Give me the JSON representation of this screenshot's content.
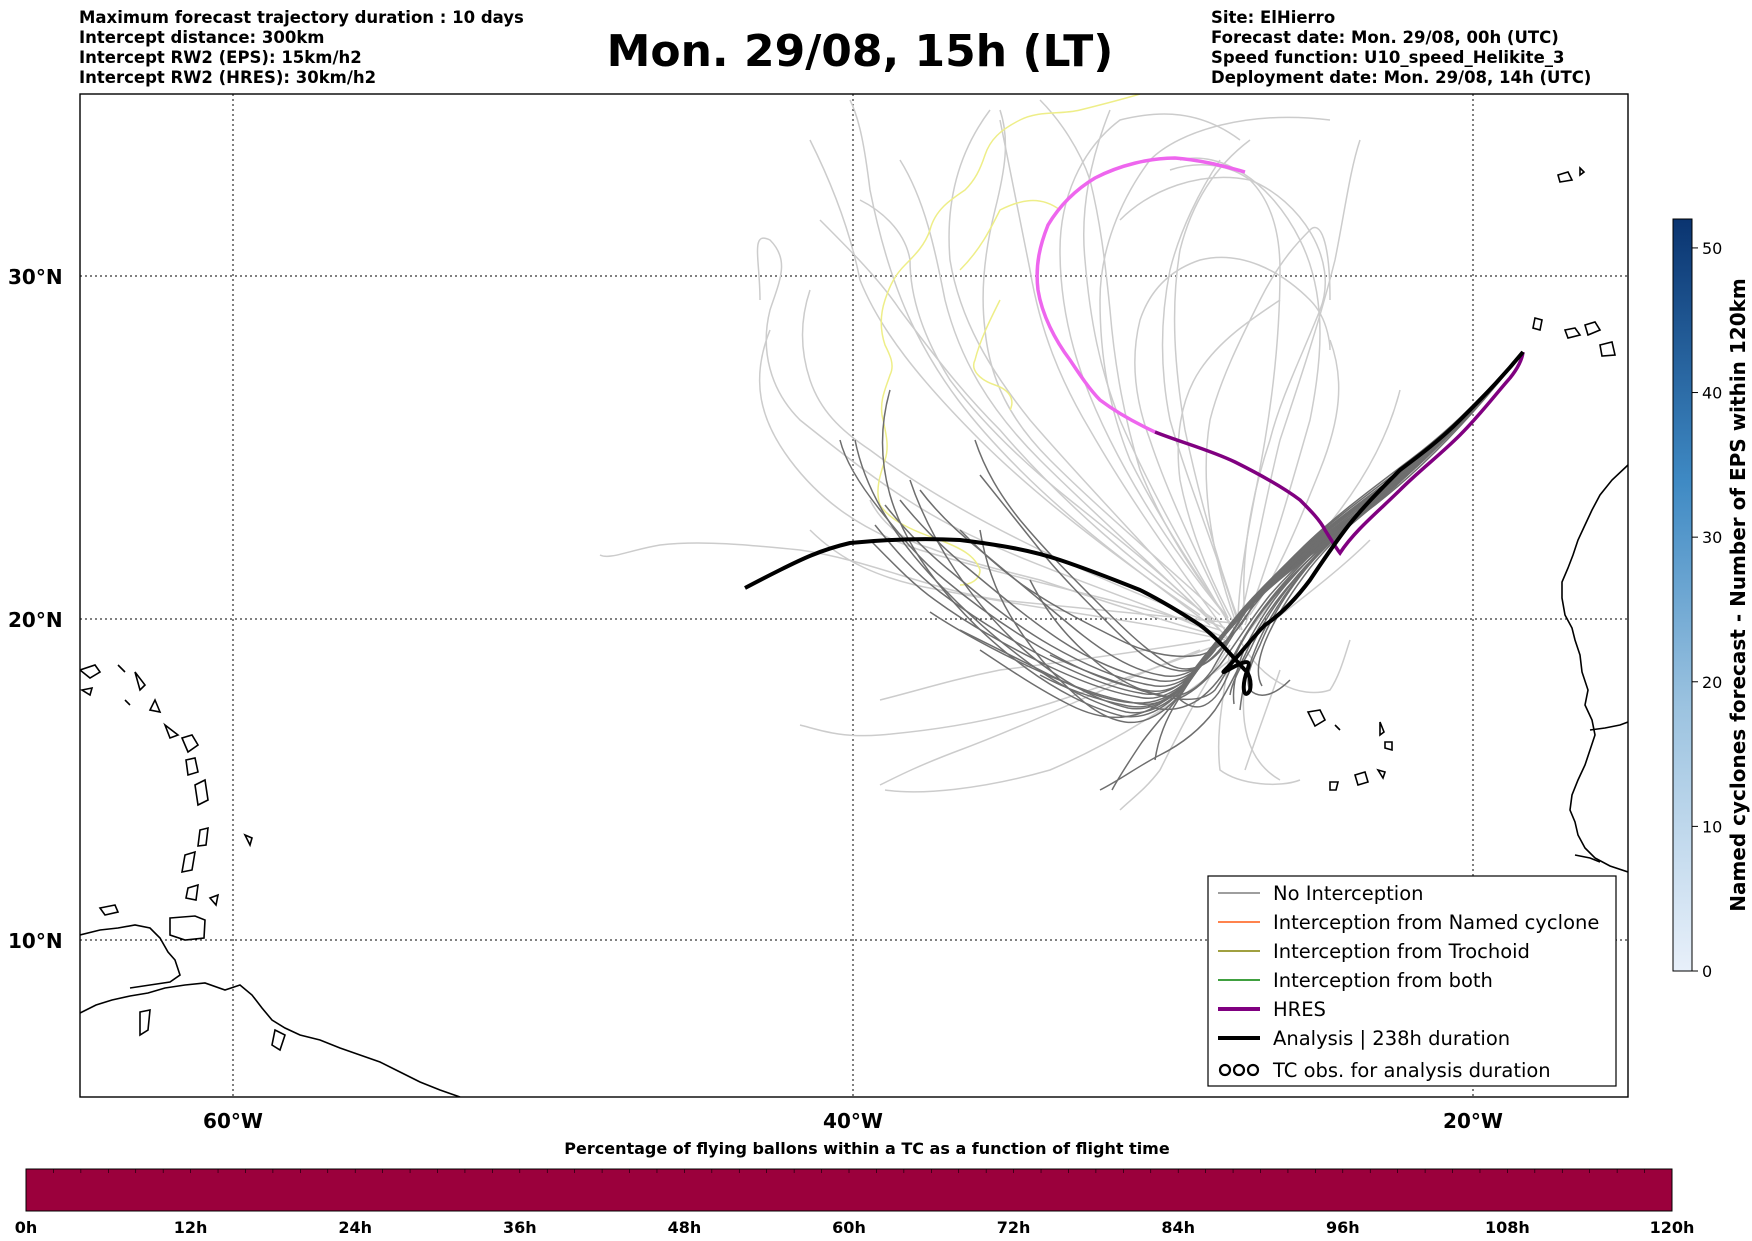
{
  "header": {
    "left_lines": [
      "Maximum forecast trajectory duration : 10 days",
      "Intercept distance: 300km",
      "Intercept RW2 (EPS):  15km/h2",
      "Intercept RW2 (HRES): 30km/h2"
    ],
    "title": "Mon. 29/08, 15h (LT)",
    "right_lines": [
      "Site: ElHierro",
      "Forecast date: Mon. 29/08, 00h (UTC)",
      "Speed function: U10_speed_Helikite_3",
      "Deployment date: Mon. 29/08, 14h (UTC)"
    ]
  },
  "map": {
    "lat_labels": [
      "30°N",
      "20°N",
      "10°N"
    ],
    "lon_labels": [
      "60°W",
      "40°W",
      "20°W"
    ],
    "colors": {
      "no_interception": "#7f7f7f",
      "named_cyclone": "#ff5a14",
      "trochoid": "#808000",
      "both": "#008000",
      "hres": "#800080",
      "analysis": "#000000",
      "hres_segment": "#ee66ee",
      "yellow_track": "#eeee88",
      "light_tracks": "#cccccc"
    },
    "legend": {
      "items": [
        {
          "label": "No Interception",
          "color": "#7f7f7f",
          "style": "thin"
        },
        {
          "label": "Interception from Named cyclone",
          "color": "#ff5a14",
          "style": "thin"
        },
        {
          "label": "Interception from Trochoid",
          "color": "#808000",
          "style": "thin"
        },
        {
          "label": "Interception from both",
          "color": "#008000",
          "style": "thin"
        },
        {
          "label": "HRES",
          "color": "#800080",
          "style": "thick"
        },
        {
          "label": "Analysis | 238h duration",
          "color": "#000000",
          "style": "thick"
        },
        {
          "label": "TC obs. for analysis duration",
          "color": "#000000",
          "style": "symbol"
        }
      ]
    }
  },
  "colorbar_right": {
    "label": "Named cyclones forecast - Number of EPS within 120km",
    "ticks": [
      "0",
      "10",
      "20",
      "30",
      "40",
      "50"
    ],
    "max": 52,
    "color_low": "#e6eef8",
    "color_high": "#0a3470"
  },
  "bottom_bar": {
    "title": "Percentage of flying ballons within a TC as a function of flight time",
    "ticks": [
      "0h",
      "12h",
      "24h",
      "36h",
      "48h",
      "60h",
      "72h",
      "84h",
      "96h",
      "108h",
      "120h"
    ],
    "fill_color": "#9b003c"
  }
}
